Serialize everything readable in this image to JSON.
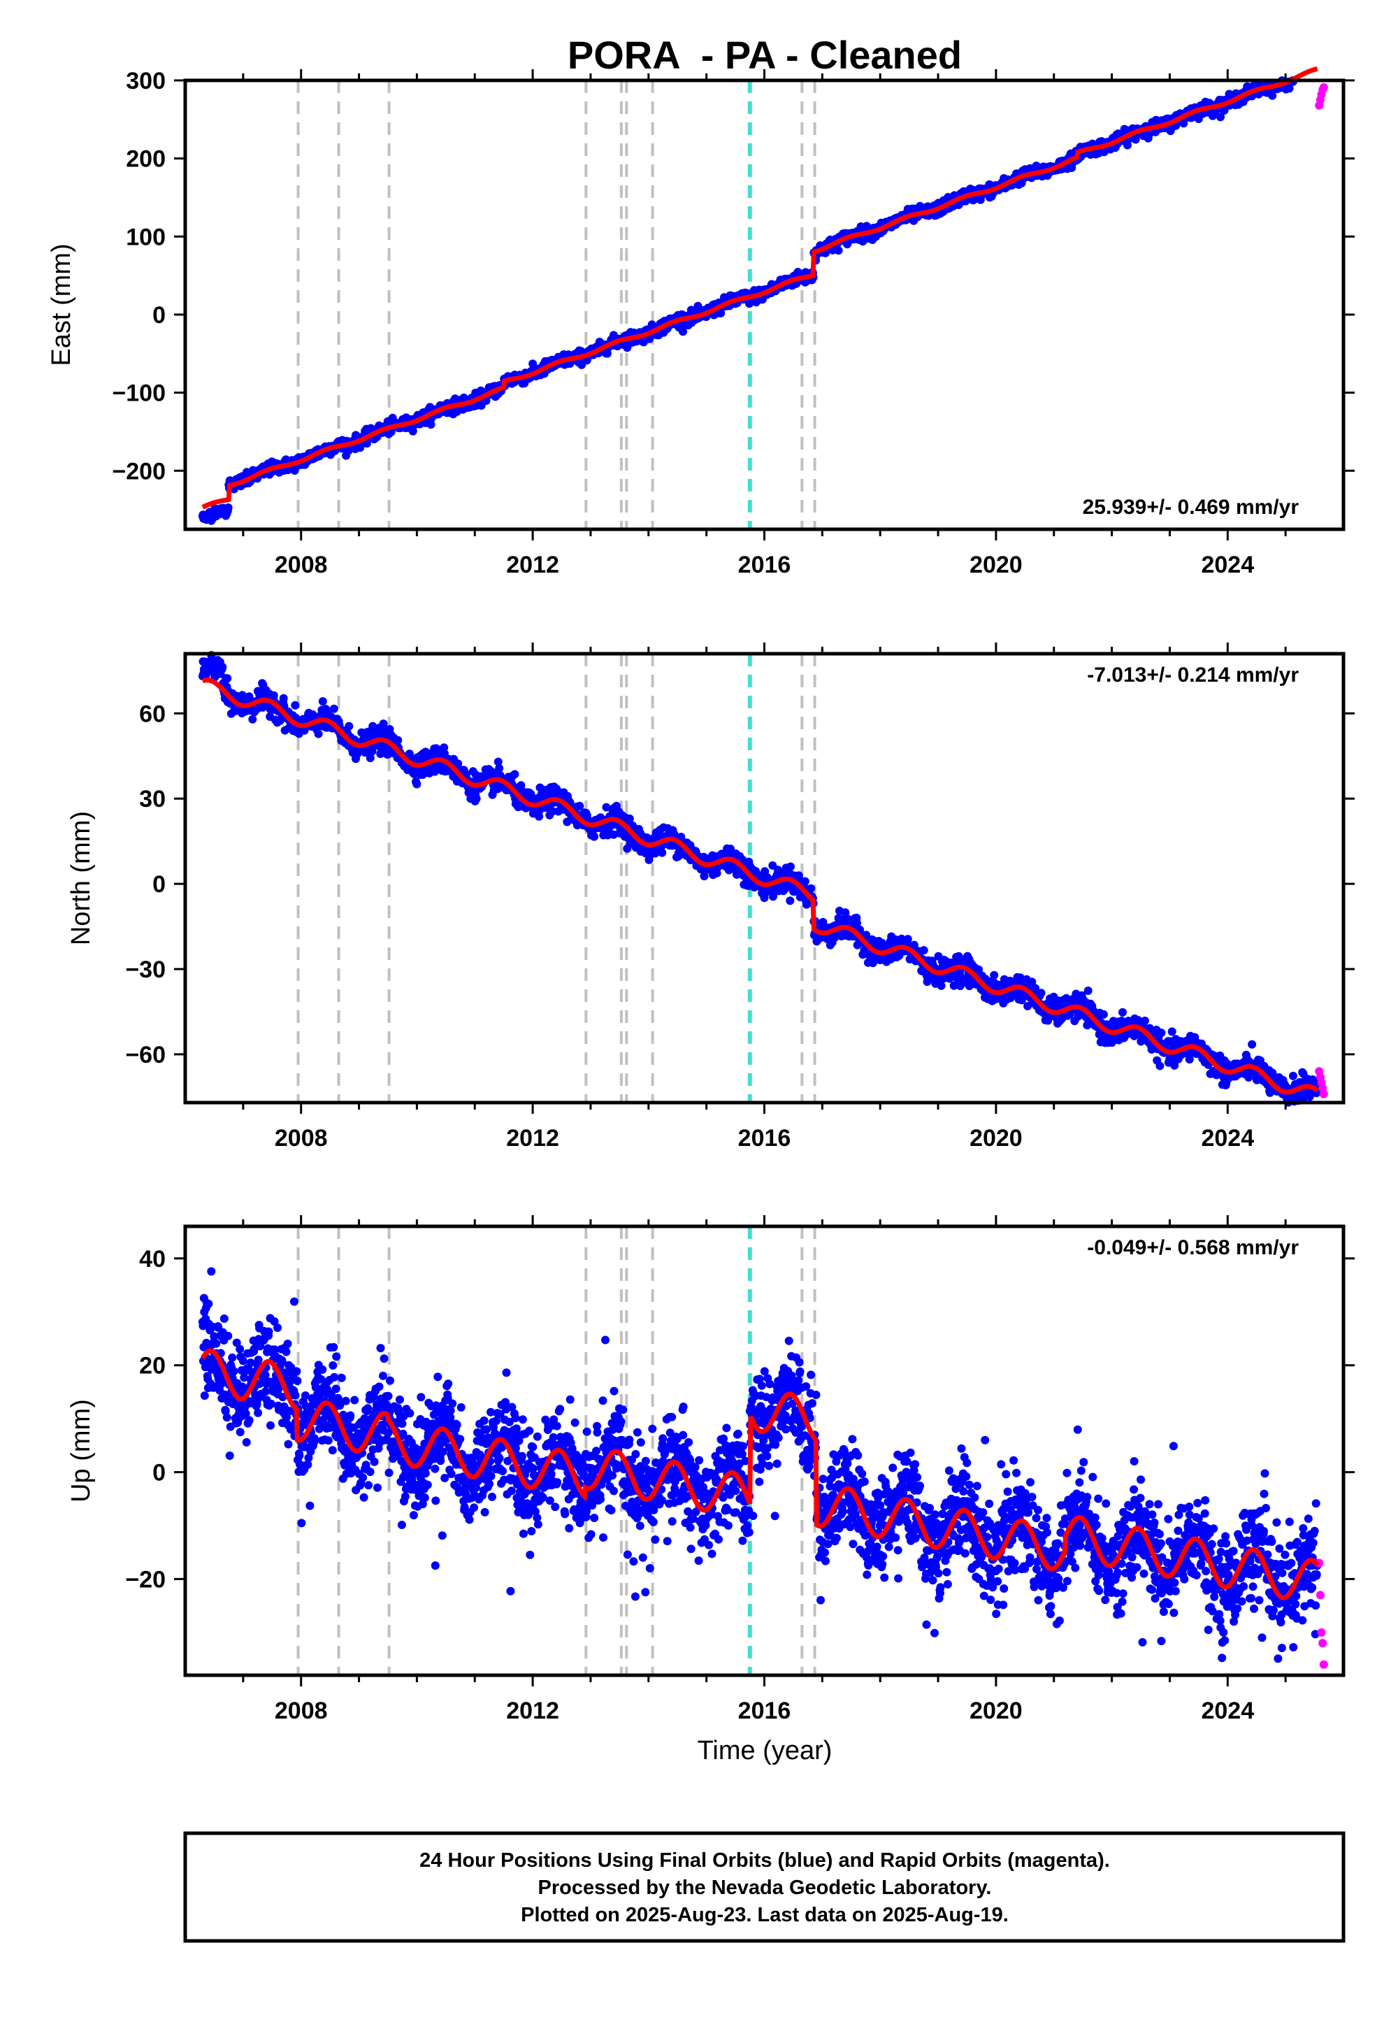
{
  "title": "PORA  - PA - Cleaned",
  "xlabel": "Time (year)",
  "footer": {
    "line1": "24 Hour Positions Using Final Orbits (blue) and Rapid Orbits (magenta).",
    "line2": "Processed by the Nevada Geodetic Laboratory.",
    "line3": "Plotted on 2025-Aug-23. Last data on 2025-Aug-19."
  },
  "colors": {
    "final_orbits": "#0000ff",
    "rapid_orbits": "#ff00ff",
    "model": "#ff0000",
    "event_lines": "#c0c0c0",
    "highlight_event": "#40e0d0"
  },
  "chart_data": [
    {
      "type": "scatter",
      "component": "east",
      "ylabel": "East (mm)",
      "rate_label": "25.939+/- 0.469 mm/yr",
      "rate_position": "bottom-right",
      "xlim": [
        2006.0,
        2026.0
      ],
      "ylim": [
        -275,
        300
      ],
      "xticks": [
        2008,
        2012,
        2016,
        2020,
        2024
      ],
      "yticks": [
        -200,
        -100,
        0,
        100,
        200,
        300
      ],
      "ytick_labels": [
        "−200",
        "−100",
        "0",
        "100",
        "200",
        "300"
      ],
      "trend": {
        "t0": 2006.3,
        "y0": -248,
        "rate": 25.94
      },
      "model_breaks": [
        {
          "t": 2006.75,
          "step": 18
        },
        {
          "t": 2011.5,
          "step": 8
        },
        {
          "t": 2016.85,
          "step": 30
        },
        {
          "t": 2021.4,
          "step": 6
        }
      ],
      "seasonal_amplitude": 2,
      "scatter_noise": 4,
      "rapid_values": [
        268,
        275,
        282,
        288,
        291
      ]
    },
    {
      "type": "scatter",
      "component": "north",
      "ylabel": "North (mm)",
      "rate_label": "-7.013+/- 0.214 mm/yr",
      "rate_position": "top-right",
      "xlim": [
        2006.0,
        2026.0
      ],
      "ylim": [
        -77,
        81
      ],
      "xticks": [
        2008,
        2012,
        2016,
        2020,
        2024
      ],
      "yticks": [
        -60,
        -30,
        0,
        30,
        60
      ],
      "ytick_labels": [
        "−60",
        "−30",
        "0",
        "30",
        "60"
      ],
      "trend": {
        "t0": 2006.3,
        "y0": 70,
        "rate": -7.0
      },
      "model_breaks": [
        {
          "t": 2016.85,
          "step": -10
        }
      ],
      "seasonal_amplitude": 2.5,
      "scatter_noise": 2.2,
      "rapid_values": [
        -66,
        -68,
        -70,
        -72,
        -74
      ]
    },
    {
      "type": "scatter",
      "component": "up",
      "ylabel": "Up (mm)",
      "rate_label": "-0.049+/- 0.568 mm/yr",
      "rate_position": "top-right",
      "xlim": [
        2006.0,
        2026.0
      ],
      "ylim": [
        -38,
        46
      ],
      "xticks": [
        2008,
        2012,
        2016,
        2020,
        2024
      ],
      "yticks": [
        -20,
        0,
        20,
        40
      ],
      "ytick_labels": [
        "−20",
        "0",
        "20",
        "40"
      ],
      "segments": [
        {
          "start": 2006.3,
          "end": 2007.93,
          "offset": 19
        },
        {
          "start": 2007.93,
          "end": 2009.5,
          "offset": 10
        },
        {
          "start": 2009.5,
          "end": 2012.9,
          "offset": 6
        },
        {
          "start": 2012.9,
          "end": 2015.75,
          "offset": 1
        },
        {
          "start": 2015.75,
          "end": 2016.9,
          "offset": 12
        },
        {
          "start": 2016.9,
          "end": 2021.2,
          "offset": -6
        },
        {
          "start": 2021.2,
          "end": 2025.6,
          "offset": -12
        }
      ],
      "seasonal_amplitude": 4,
      "scatter_noise": 4.5,
      "rapid_values": [
        -17,
        -23,
        -30,
        -32,
        -36
      ]
    }
  ],
  "events": {
    "gray": [
      2007.95,
      2008.65,
      2009.52,
      2012.92,
      2013.53,
      2013.62,
      2014.07,
      2016.65,
      2016.87
    ],
    "cyan": [
      2015.75
    ]
  }
}
